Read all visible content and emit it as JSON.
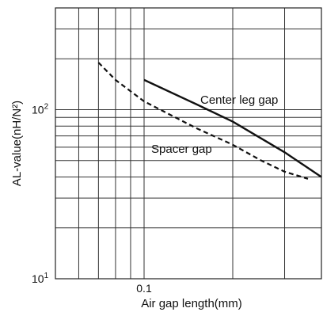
{
  "chart_data": {
    "type": "line",
    "title": "",
    "xlabel": "Air gap length(mm)",
    "ylabel": "AL-value(nH/N²)",
    "x_scale": "log",
    "y_scale": "log",
    "xlim": [
      0.05,
      0.4
    ],
    "ylim": [
      10,
      400
    ],
    "grid": true,
    "x_tick_labels": [
      {
        "value": 0.1,
        "label": "0.1"
      }
    ],
    "y_tick_labels": [
      {
        "value": 10,
        "base": "10",
        "exp": "1"
      },
      {
        "value": 100,
        "base": "10",
        "exp": "2"
      }
    ],
    "series": [
      {
        "name": "Center leg gap",
        "style": "solid",
        "color": "#111111",
        "points": [
          [
            0.1,
            150
          ],
          [
            0.15,
            108
          ],
          [
            0.2,
            85
          ],
          [
            0.3,
            56
          ],
          [
            0.4,
            40
          ]
        ]
      },
      {
        "name": "Spacer gap",
        "style": "dashed",
        "color": "#111111",
        "points": [
          [
            0.07,
            190
          ],
          [
            0.08,
            150
          ],
          [
            0.1,
            112
          ],
          [
            0.15,
            78
          ],
          [
            0.2,
            62
          ],
          [
            0.25,
            50
          ],
          [
            0.3,
            43
          ],
          [
            0.36,
            39
          ]
        ]
      }
    ],
    "annotations": [
      {
        "text": "Center leg gap",
        "series": "Center leg gap"
      },
      {
        "text": "Spacer gap",
        "series": "Spacer gap"
      }
    ]
  }
}
